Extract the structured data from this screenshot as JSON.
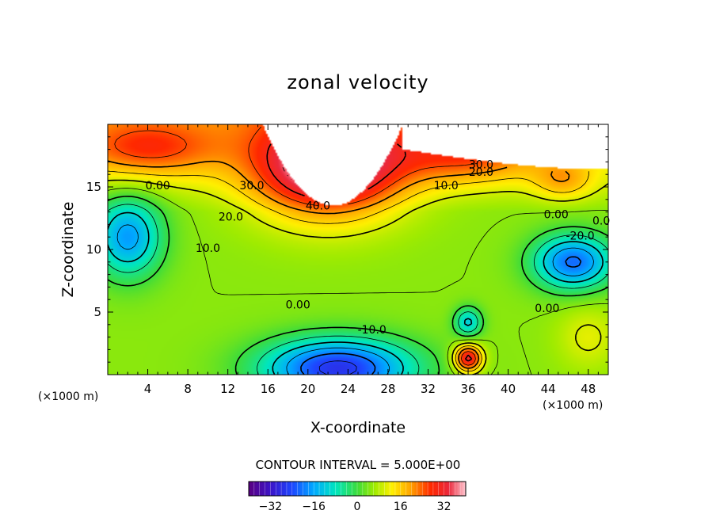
{
  "chart_data": {
    "type": "heatmap",
    "title": "zonal velocity",
    "xlabel": "X-coordinate",
    "ylabel": "Z-coordinate",
    "x_unit": "(×1000 m)",
    "y_unit": "(×1000 m)",
    "xlim": [
      0,
      50
    ],
    "ylim": [
      0,
      20
    ],
    "x_ticks": [
      4,
      8,
      12,
      16,
      20,
      24,
      28,
      32,
      36,
      40,
      44,
      48
    ],
    "y_ticks": [
      5,
      10,
      15
    ],
    "contour_interval_text": "CONTOUR INTERVAL = 5.000E+00",
    "contour_labels": [
      {
        "text": "40.0",
        "x": 21,
        "y": 13.2
      },
      {
        "text": "30.0",
        "x": 14.4,
        "y": 14.8
      },
      {
        "text": "30.0",
        "x": 37.3,
        "y": 16.5
      },
      {
        "text": "20.0",
        "x": 12.3,
        "y": 12.3
      },
      {
        "text": "20.0",
        "x": 37.3,
        "y": 15.9
      },
      {
        "text": "10.0",
        "x": 10,
        "y": 9.8
      },
      {
        "text": "10.0",
        "x": 33.8,
        "y": 14.8
      },
      {
        "text": "0.00",
        "x": 5,
        "y": 14.8
      },
      {
        "text": "0.00",
        "x": 44.8,
        "y": 12.5
      },
      {
        "text": "0.00",
        "x": 19,
        "y": 5.3
      },
      {
        "text": "0.00",
        "x": 43.9,
        "y": 5
      },
      {
        "text": "-10.0",
        "x": 26.4,
        "y": 3.3
      },
      {
        "text": "-20.0",
        "x": 47.2,
        "y": 10.8
      },
      {
        "text": "0.0",
        "x": 49.3,
        "y": 12
      }
    ],
    "features": [
      {
        "kind": "maximum",
        "x": 22,
        "y": 16.5,
        "value": 44
      },
      {
        "kind": "maximum",
        "x": 3,
        "y": 18,
        "value": 35
      },
      {
        "kind": "maximum",
        "x": 36,
        "y": 1.5,
        "value": 30
      },
      {
        "kind": "minimum",
        "x": 23,
        "y": 0.5,
        "value": -35
      },
      {
        "kind": "minimum",
        "x": 2,
        "y": 11,
        "value": -22
      },
      {
        "kind": "minimum",
        "x": 46.5,
        "y": 9,
        "value": -28
      },
      {
        "kind": "minimum",
        "x": 36,
        "y": 4.2,
        "value": -15
      },
      {
        "kind": "maximum",
        "x": 45.5,
        "y": 15.5,
        "value": 22
      }
    ],
    "colorbar": {
      "range": [
        -40,
        40
      ],
      "ticks": [
        -32,
        -16,
        0,
        16,
        32
      ],
      "tick_labels": [
        "−32",
        "−16",
        "0",
        "16",
        "32"
      ]
    }
  }
}
